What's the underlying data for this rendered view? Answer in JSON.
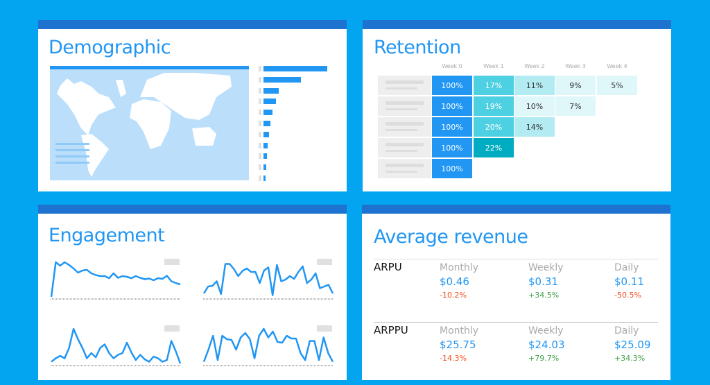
{
  "colors": {
    "background": "#03a5f0",
    "header": "#1e73d0",
    "accent": "#2196f3",
    "positive": "#43a047",
    "negative": "#f4511e"
  },
  "demographic": {
    "title": "Demographic",
    "bar_values": [
      92,
      54,
      22,
      18,
      13,
      10,
      8,
      6,
      5,
      4,
      3
    ]
  },
  "retention": {
    "title": "Retention",
    "weeks": [
      "Week 0",
      "Week 1",
      "Week 2",
      "Week 3",
      "Week 4"
    ],
    "rows": [
      [
        "100%",
        "17%",
        "11%",
        "9%",
        "5%"
      ],
      [
        "100%",
        "19%",
        "10%",
        "7%"
      ],
      [
        "100%",
        "20%",
        "14%"
      ],
      [
        "100%",
        "22%"
      ],
      [
        "100%"
      ]
    ]
  },
  "engagement": {
    "title": "Engagement",
    "series": [
      [
        0,
        100,
        90,
        100,
        92,
        82,
        70,
        76,
        78,
        68,
        63,
        60,
        60,
        54,
        68,
        55,
        60,
        58,
        54,
        60,
        55,
        51,
        53,
        48,
        54,
        52,
        61,
        45,
        40,
        36
      ],
      [
        10,
        30,
        32,
        45,
        8,
        95,
        95,
        80,
        60,
        75,
        82,
        72,
        72,
        40,
        76,
        85,
        5,
        92,
        45,
        50,
        60,
        52,
        72,
        88,
        40,
        50,
        68,
        25,
        30,
        35,
        10
      ],
      [
        5,
        15,
        22,
        15,
        45,
        100,
        70,
        45,
        15,
        30,
        18,
        45,
        55,
        30,
        15,
        25,
        30,
        60,
        32,
        10,
        25,
        12,
        5,
        20,
        15,
        5,
        10,
        65,
        35,
        0
      ],
      [
        5,
        40,
        80,
        10,
        80,
        70,
        68,
        40,
        75,
        88,
        70,
        15,
        80,
        100,
        75,
        92,
        62,
        60,
        80,
        72,
        72,
        30,
        10,
        65,
        65,
        10,
        75,
        30,
        5
      ]
    ]
  },
  "revenue": {
    "title": "Average revenue",
    "rows": [
      {
        "name": "ARPU",
        "cols": [
          {
            "label": "Monthly",
            "value": "$0.46",
            "change": "-10.2%",
            "dir": "neg"
          },
          {
            "label": "Weekly",
            "value": "$0.31",
            "change": "+34.5%",
            "dir": "pos"
          },
          {
            "label": "Daily",
            "value": "$0.11",
            "change": "-50.5%",
            "dir": "neg"
          }
        ]
      },
      {
        "name": "ARPPU",
        "cols": [
          {
            "label": "Monthly",
            "value": "$25.75",
            "change": "-14.3%",
            "dir": "neg"
          },
          {
            "label": "Weekly",
            "value": "$24.03",
            "change": "+79.7%",
            "dir": "pos"
          },
          {
            "label": "Daily",
            "value": "$25.09",
            "change": "+34.3%",
            "dir": "pos"
          }
        ]
      }
    ]
  }
}
